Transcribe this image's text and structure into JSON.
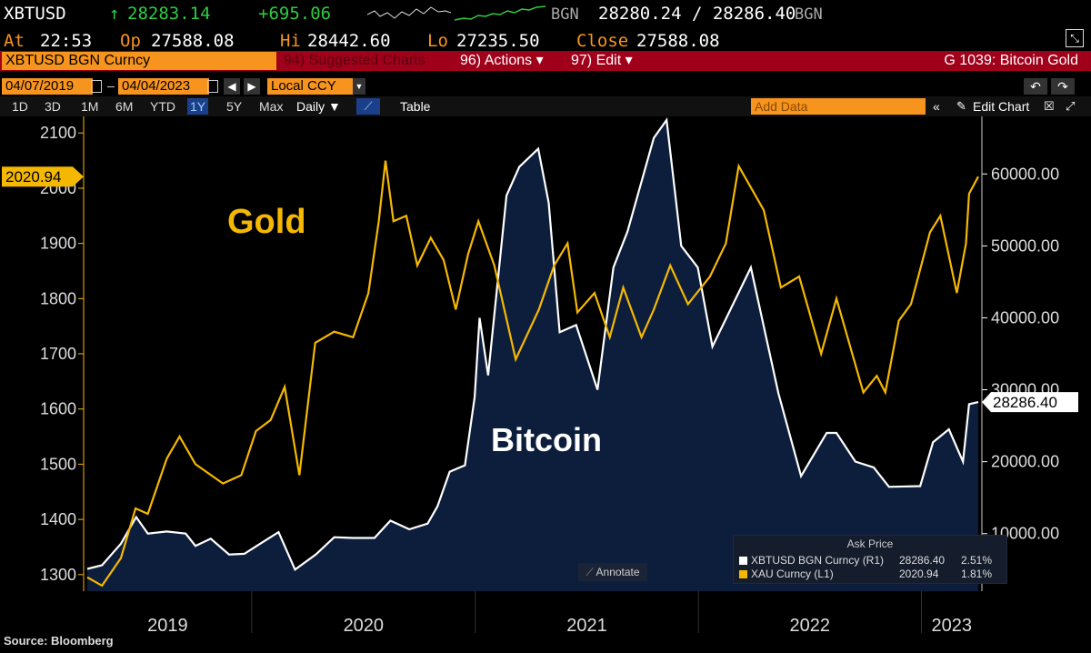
{
  "header": {
    "ticker": "XBTUSD",
    "last_arrow": "↑",
    "last_price": "28283.14",
    "change": "+695.06",
    "source": "BGN",
    "bid_ask": "28280.24 / 28286.40",
    "source2": "BGN",
    "at_label": "At",
    "at_time": "22:53",
    "open_label": "Op",
    "open_value": "27588.08",
    "high_label": "Hi",
    "high_value": "28442.60",
    "low_label": "Lo",
    "low_value": "27235.50",
    "close_label": "Close",
    "close_value": "27588.08"
  },
  "menubar": {
    "security": "XBTUSD BGN Curncy",
    "suggested": "94) Suggested Charts",
    "actions": "96) Actions ▾",
    "edit": "97) Edit ▾",
    "chart_id": "G 1039: Bitcoin Gold"
  },
  "controls": {
    "start_date": "04/07/2019",
    "end_date": "04/04/2023",
    "currency": "Local CCY",
    "add_data_placeholder": "Add Data",
    "edit_chart": "Edit Chart",
    "periods": [
      "1D",
      "3D",
      "1M",
      "6M",
      "YTD",
      "1Y",
      "5Y",
      "Max"
    ],
    "active_period": "1Y",
    "frequency": "Daily ▼",
    "table_label": "Table"
  },
  "colors": {
    "gold": "#f5b800",
    "bitcoin": "#ffffff",
    "area_fill": "#0d1e3d",
    "accent_orange": "#f7941d",
    "menu_red": "#a0001a",
    "price_green": "#2ecc40"
  },
  "source_note": "Source: Bloomberg",
  "annotate_label": "Annotate",
  "chart_data": {
    "type": "line",
    "x_labels": [
      "2019",
      "2020",
      "2021",
      "2022",
      "2023"
    ],
    "left_axis": {
      "series": "XAU Curncy",
      "ticks": [
        1300,
        1400,
        1500,
        1600,
        1700,
        1800,
        1900,
        2000,
        2100
      ],
      "ylim": [
        1270,
        2130
      ],
      "last_label": "2020.94"
    },
    "right_axis": {
      "series": "XBTUSD BGN Curncy",
      "ticks": [
        "10000.00",
        "20000.00",
        "30000.00",
        "40000.00",
        "50000.00",
        "60000.00"
      ],
      "tick_values": [
        10000,
        20000,
        30000,
        40000,
        50000,
        60000
      ],
      "ylim": [
        2000,
        68000
      ],
      "last_label": "28286.40"
    },
    "annotations": [
      {
        "text": "Gold",
        "color": "#f5b800"
      },
      {
        "text": "Bitcoin",
        "color": "#ffffff"
      }
    ],
    "series": [
      {
        "name": "XAU Curncy",
        "axis": "left",
        "dates": [
          "2019-04-07",
          "2019-05-01",
          "2019-06-01",
          "2019-06-25",
          "2019-07-15",
          "2019-08-15",
          "2019-09-05",
          "2019-10-01",
          "2019-11-15",
          "2019-12-15",
          "2020-01-08",
          "2020-02-01",
          "2020-02-24",
          "2020-03-19",
          "2020-04-14",
          "2020-05-15",
          "2020-06-15",
          "2020-07-10",
          "2020-07-27",
          "2020-08-07",
          "2020-08-20",
          "2020-09-10",
          "2020-09-28",
          "2020-10-20",
          "2020-11-10",
          "2020-11-30",
          "2020-12-20",
          "2021-01-06",
          "2021-02-01",
          "2021-03-08",
          "2021-04-15",
          "2021-05-10",
          "2021-06-01",
          "2021-06-17",
          "2021-07-15",
          "2021-08-09",
          "2021-08-31",
          "2021-09-30",
          "2021-10-20",
          "2021-11-16",
          "2021-12-15",
          "2022-01-20",
          "2022-02-15",
          "2022-03-08",
          "2022-04-18",
          "2022-05-16",
          "2022-06-15",
          "2022-07-21",
          "2022-08-15",
          "2022-09-28",
          "2022-10-20",
          "2022-11-03",
          "2022-11-25",
          "2022-12-15",
          "2023-01-15",
          "2023-02-01",
          "2023-02-28",
          "2023-03-15",
          "2023-03-20",
          "2023-04-04"
        ],
        "values": [
          1295,
          1280,
          1330,
          1420,
          1410,
          1510,
          1550,
          1500,
          1465,
          1480,
          1560,
          1580,
          1640,
          1480,
          1720,
          1740,
          1730,
          1810,
          1940,
          2050,
          1940,
          1950,
          1860,
          1910,
          1870,
          1780,
          1880,
          1940,
          1860,
          1690,
          1780,
          1860,
          1900,
          1775,
          1810,
          1730,
          1820,
          1730,
          1780,
          1860,
          1790,
          1840,
          1900,
          2040,
          1960,
          1820,
          1840,
          1700,
          1800,
          1630,
          1660,
          1630,
          1760,
          1790,
          1920,
          1950,
          1810,
          1900,
          1990,
          2021
        ]
      },
      {
        "name": "XBTUSD BGN Curncy",
        "axis": "right",
        "dates": [
          "2019-04-07",
          "2019-05-01",
          "2019-06-01",
          "2019-06-26",
          "2019-07-15",
          "2019-08-15",
          "2019-09-15",
          "2019-10-01",
          "2019-10-26",
          "2019-11-25",
          "2019-12-20",
          "2020-01-15",
          "2020-02-14",
          "2020-03-12",
          "2020-04-15",
          "2020-05-15",
          "2020-06-15",
          "2020-07-20",
          "2020-08-15",
          "2020-09-15",
          "2020-10-15",
          "2020-10-31",
          "2020-11-20",
          "2020-12-15",
          "2020-12-31",
          "2021-01-08",
          "2021-01-22",
          "2021-02-21",
          "2021-03-14",
          "2021-04-14",
          "2021-05-01",
          "2021-05-19",
          "2021-06-15",
          "2021-07-20",
          "2021-08-15",
          "2021-09-07",
          "2021-10-20",
          "2021-11-10",
          "2021-12-04",
          "2021-12-31",
          "2022-01-24",
          "2022-03-28",
          "2022-05-12",
          "2022-06-18",
          "2022-07-30",
          "2022-08-15",
          "2022-09-15",
          "2022-10-15",
          "2022-11-09",
          "2022-12-30",
          "2023-01-20",
          "2023-02-15",
          "2023-03-10",
          "2023-03-20",
          "2023-04-04"
        ],
        "values": [
          5100,
          5600,
          8600,
          12300,
          10000,
          10300,
          10000,
          8300,
          9300,
          7100,
          7200,
          8600,
          10200,
          5000,
          7100,
          9500,
          9400,
          9400,
          11800,
          10600,
          11400,
          13800,
          18600,
          19500,
          29000,
          40000,
          32000,
          57000,
          61000,
          63500,
          56000,
          38000,
          39000,
          30000,
          47000,
          52000,
          65000,
          67500,
          50000,
          47000,
          36000,
          47000,
          29500,
          18000,
          24000,
          24000,
          20000,
          19200,
          16500,
          16600,
          22700,
          24500,
          20000,
          28000,
          28286
        ]
      }
    ]
  },
  "legend": {
    "header": "Ask Price",
    "rows": [
      {
        "label": "XBTUSD BGN Curncy  (R1)",
        "value": "28286.40",
        "pct": "2.51%"
      },
      {
        "label": "XAU Curncy  (L1)",
        "value": "2020.94",
        "pct": "1.81%"
      }
    ]
  }
}
